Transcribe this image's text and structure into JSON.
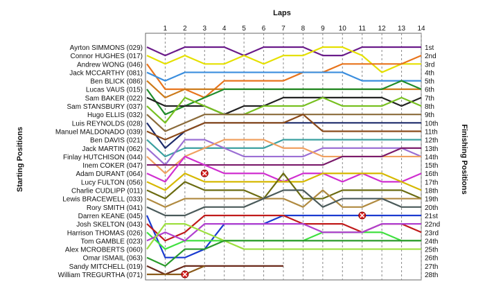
{
  "chart_data": {
    "type": "line",
    "xlabel": "Laps",
    "left_label": "Starting Positions",
    "right_label": "Finishing Positions",
    "laps": [
      1,
      2,
      3,
      4,
      5,
      6,
      7,
      8,
      9,
      10,
      11,
      12,
      13,
      14
    ],
    "lap_labels": [
      "1",
      "2",
      "3",
      "4",
      "5",
      "6",
      "7",
      "8",
      "9",
      "10",
      "11",
      "12",
      "13",
      "14"
    ],
    "drivers": [
      "Ayrton SIMMONS (029)",
      "Connor HUGHES (017)",
      "Andrew WONG (046)",
      "Jack MCCARTHY (081)",
      "Ben BLICK (086)",
      "Lucas VAUS (015)",
      "Sam BAKER (022)",
      "Sam STANSBURY (037)",
      "Hugo ELLIS (032)",
      "Luis REYNOLDS (028)",
      "Manuel MALDONADO (039)",
      "Ben DAVIS (021)",
      "Jack MARTIN (062)",
      "Finlay HUTCHISON (044)",
      "Inem COKER (047)",
      "Adam DURANT (064)",
      "Lucy FULTON (056)",
      "Charlie CUDLIPP (011)",
      "Lewis BRACEWELL (033)",
      "Rory SMITH (041)",
      "Darren KEANE (045)",
      "Josh SKELTON (043)",
      "Harrison THOMAS (026)",
      "Tom GAMBLE (023)",
      "Alex MCROBERTS (060)",
      "Omar ISMAIL (063)",
      "Sandy MITCHELL (019)",
      "William TREGURTHA (071)"
    ],
    "finishing_positions": [
      "1st",
      "2nd",
      "3rd",
      "4th",
      "5th",
      "6th",
      "7th",
      "8th",
      "9th",
      "10th",
      "11th",
      "12th",
      "13th",
      "14th",
      "15th",
      "16th",
      "17th",
      "18th",
      "19th",
      "20th",
      "21st",
      "22nd",
      "23rd",
      "24th",
      "25th",
      "26th",
      "27th",
      "28th"
    ],
    "y_range": [
      1,
      28
    ],
    "series": [
      {
        "color": "#6a1b8a",
        "positions": [
          2,
          1,
          1,
          1,
          2,
          1,
          1,
          1,
          2,
          2,
          1,
          1,
          1,
          1
        ]
      },
      {
        "color": "#e5e000",
        "positions": [
          3,
          2,
          3,
          3,
          2,
          3,
          2,
          2,
          1,
          1,
          2,
          4,
          3,
          3
        ]
      },
      {
        "color": "#e8741c",
        "positions": [
          6,
          6,
          7,
          5,
          5,
          5,
          5,
          4,
          4,
          3,
          3,
          3,
          3,
          2
        ]
      },
      {
        "color": "#3b8ede",
        "positions": [
          5,
          4,
          4,
          4,
          4,
          4,
          4,
          4,
          4,
          4,
          5,
          5,
          5,
          5
        ]
      },
      {
        "color": "#cc7a1a",
        "positions": [
          7,
          6,
          6,
          6,
          6,
          6,
          6,
          6,
          6,
          6,
          6,
          6,
          6,
          6
        ]
      },
      {
        "color": "#1f8c2a",
        "positions": [
          9,
          8,
          7,
          6,
          6,
          6,
          6,
          6,
          6,
          6,
          6,
          6,
          5,
          6
        ]
      },
      {
        "color": "#222222",
        "positions": [
          8,
          8,
          8,
          9,
          8,
          8,
          7,
          7,
          7,
          7,
          7,
          7,
          8,
          7
        ]
      },
      {
        "color": "#77c020",
        "positions": [
          10,
          7,
          8,
          9,
          9,
          8,
          8,
          8,
          7,
          8,
          8,
          8,
          7,
          8
        ]
      },
      {
        "color": "#8a6a3a",
        "positions": [
          11,
          10,
          9,
          9,
          9,
          9,
          9,
          9,
          9,
          9,
          9,
          9,
          9,
          9
        ]
      },
      {
        "color": "#1c2a6a",
        "positions": [
          13,
          11,
          10,
          10,
          10,
          10,
          10,
          10,
          10,
          10,
          10,
          10,
          10,
          10
        ]
      },
      {
        "color": "#8a4a1a",
        "positions": [
          12,
          11,
          10,
          10,
          10,
          10,
          10,
          9,
          11,
          11,
          11,
          11,
          11,
          11
        ]
      },
      {
        "color": "#3aa0a0",
        "positions": [
          14,
          13,
          13,
          13,
          13,
          13,
          12,
          12,
          12,
          12,
          12,
          12,
          12,
          12
        ]
      },
      {
        "color": "#9b6fd4",
        "positions": [
          15,
          12,
          12,
          13,
          14,
          14,
          14,
          14,
          13,
          13,
          13,
          13,
          13,
          14
        ]
      },
      {
        "color": "#f0a060",
        "positions": [
          16,
          14,
          13,
          12,
          12,
          12,
          13,
          13,
          14,
          14,
          14,
          14,
          14,
          14
        ]
      },
      {
        "color": "#7a1a6a",
        "positions": [
          15,
          15,
          15,
          15,
          15,
          15,
          15,
          15,
          15,
          14,
          14,
          14,
          13,
          13
        ]
      },
      {
        "color": "#d02fd0",
        "positions": [
          17,
          14,
          15,
          16,
          16,
          16,
          17,
          16,
          16,
          17,
          16,
          17,
          17,
          16
        ]
      },
      {
        "color": "#d6b800",
        "positions": [
          18,
          16,
          17,
          17,
          17,
          17,
          17,
          17,
          16,
          16,
          16,
          16,
          17,
          18
        ]
      },
      {
        "color": "#6b6b10",
        "positions": [
          19,
          17,
          18,
          18,
          18,
          19,
          16,
          19,
          19,
          18,
          18,
          18,
          18,
          19
        ]
      },
      {
        "color": "#b08a40",
        "positions": [
          20,
          19,
          19,
          19,
          19,
          19,
          19,
          20,
          18,
          20,
          20,
          19,
          19,
          19
        ]
      },
      {
        "color": "#4a5a5a",
        "positions": [
          21,
          21,
          20,
          20,
          20,
          19,
          18,
          18,
          20,
          19,
          19,
          19,
          20,
          20
        ]
      },
      {
        "color": "#1a3ad0",
        "positions": [
          26,
          26,
          25,
          22,
          22,
          22,
          21,
          21,
          21,
          21,
          21,
          21,
          21,
          21
        ]
      },
      {
        "color": "#c01a1a",
        "positions": [
          24,
          23,
          21,
          21,
          21,
          21,
          21,
          22,
          22,
          22,
          23,
          22,
          22,
          23
        ]
      },
      {
        "color": "#40e040",
        "positions": [
          25,
          24,
          24,
          24,
          24,
          24,
          24,
          24,
          23,
          23,
          23,
          23,
          24,
          24
        ]
      },
      {
        "color": "#b040d0",
        "positions": [
          23,
          24,
          22,
          22,
          22,
          22,
          22,
          22,
          23,
          23,
          23,
          22,
          22,
          22
        ]
      },
      {
        "color": "#9ee040",
        "positions": [
          22,
          22,
          23,
          24,
          25,
          25,
          25,
          25,
          25,
          25,
          25,
          25,
          25,
          25
        ]
      },
      {
        "color": "#2a9a2a",
        "positions": [
          27,
          25,
          25,
          24,
          24,
          24,
          24,
          24,
          24,
          24,
          24,
          24,
          24,
          24
        ]
      },
      {
        "color": "#6a2a1a",
        "positions": [
          28,
          27,
          27,
          27,
          27,
          27,
          27
        ]
      },
      {
        "color": "#8a5a1a",
        "positions": [
          28,
          28,
          27
        ]
      }
    ],
    "crashes": [
      {
        "lap": 3,
        "position": 16
      },
      {
        "lap": 11,
        "position": 21
      },
      {
        "lap": 2,
        "position": 28
      }
    ]
  }
}
